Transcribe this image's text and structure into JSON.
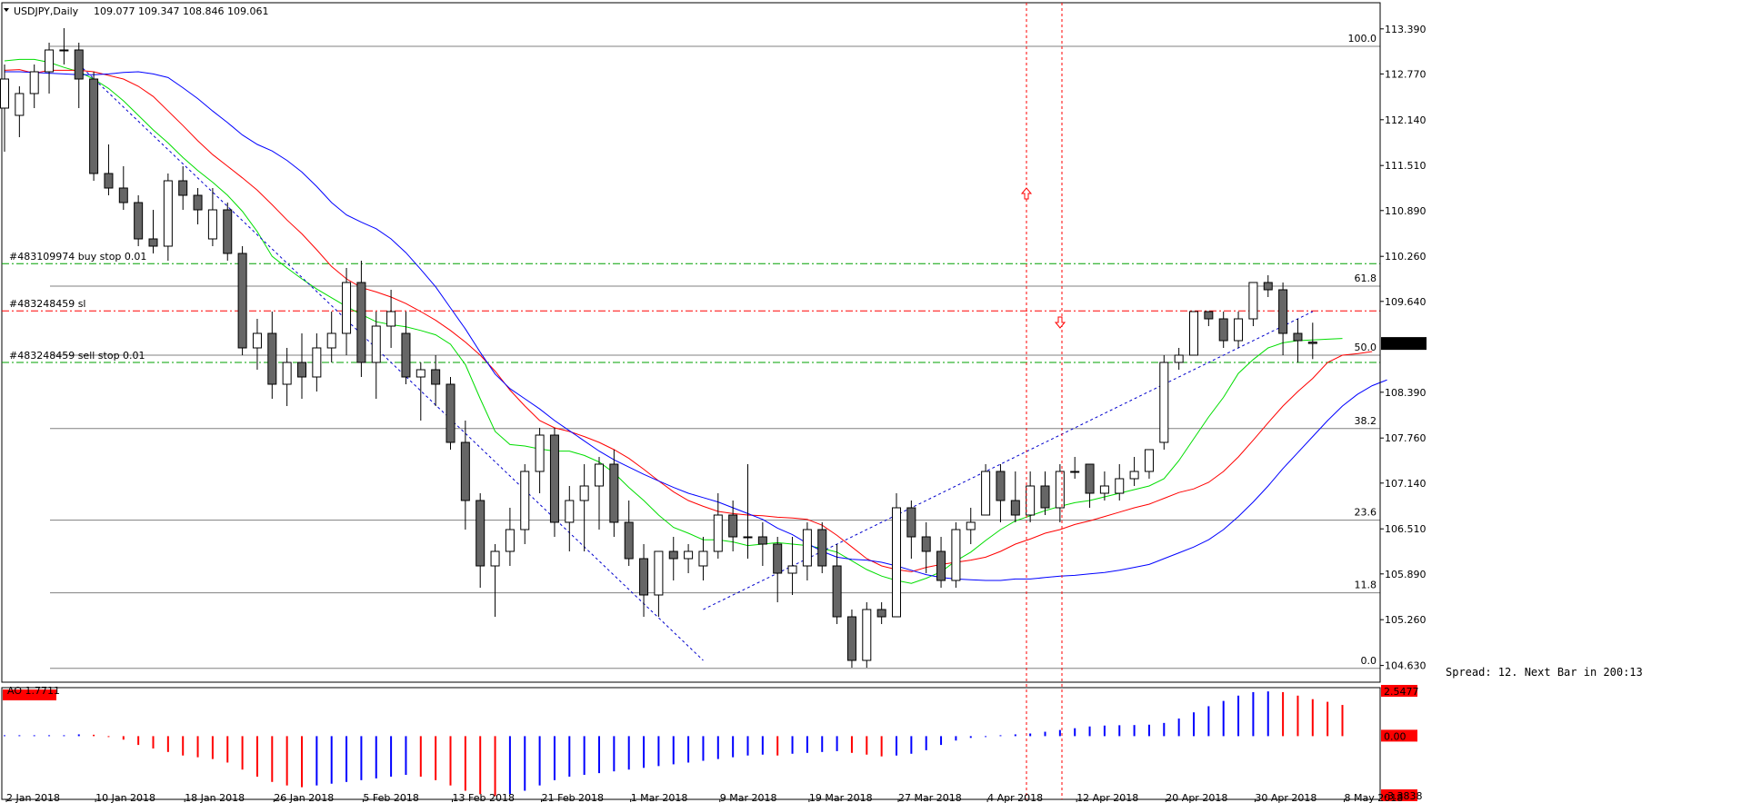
{
  "window": {
    "symbol_timeframe": "USDJPY,Daily",
    "ohlc": "109.077 109.347 108.846 109.061",
    "spread_text": "Spread: 12. Next Bar in 200:13"
  },
  "chart_data": [
    {
      "type": "candlestick",
      "title": "USDJPY,Daily",
      "ylim": [
        104.4,
        113.75
      ],
      "price_ticks": [
        "113.390",
        "112.770",
        "112.140",
        "111.510",
        "110.890",
        "110.260",
        "109.640",
        "109.061",
        "108.390",
        "107.760",
        "107.140",
        "106.510",
        "105.890",
        "105.260",
        "104.630"
      ],
      "current_price": "109.061",
      "date_labels": [
        "2 Jan 2018",
        "10 Jan 2018",
        "18 Jan 2018",
        "26 Jan 2018",
        "5 Feb 2018",
        "13 Feb 2018",
        "21 Feb 2018",
        "1 Mar 2018",
        "9 Mar 2018",
        "19 Mar 2018",
        "27 Mar 2018",
        "4 Apr 2018",
        "12 Apr 2018",
        "20 Apr 2018",
        "30 Apr 2018",
        "8 May 2018"
      ],
      "candles": [
        {
          "o": 112.3,
          "h": 112.9,
          "l": 111.7,
          "c": 112.7
        },
        {
          "o": 112.2,
          "h": 112.6,
          "l": 111.9,
          "c": 112.5
        },
        {
          "o": 112.5,
          "h": 112.9,
          "l": 112.3,
          "c": 112.8
        },
        {
          "o": 112.8,
          "h": 113.2,
          "l": 112.5,
          "c": 113.1
        },
        {
          "o": 113.1,
          "h": 113.4,
          "l": 112.9,
          "c": 113.1
        },
        {
          "o": 113.1,
          "h": 113.2,
          "l": 112.3,
          "c": 112.7
        },
        {
          "o": 112.7,
          "h": 112.8,
          "l": 111.3,
          "c": 111.4
        },
        {
          "o": 111.4,
          "h": 111.8,
          "l": 111.1,
          "c": 111.2
        },
        {
          "o": 111.2,
          "h": 111.5,
          "l": 110.9,
          "c": 111.0
        },
        {
          "o": 111.0,
          "h": 111.1,
          "l": 110.4,
          "c": 110.5
        },
        {
          "o": 110.5,
          "h": 110.9,
          "l": 110.3,
          "c": 110.4
        },
        {
          "o": 110.4,
          "h": 111.4,
          "l": 110.2,
          "c": 111.3
        },
        {
          "o": 111.3,
          "h": 111.5,
          "l": 110.9,
          "c": 111.1
        },
        {
          "o": 111.1,
          "h": 111.2,
          "l": 110.7,
          "c": 110.9
        },
        {
          "o": 110.5,
          "h": 111.2,
          "l": 110.4,
          "c": 110.9
        },
        {
          "o": 110.9,
          "h": 111.0,
          "l": 110.2,
          "c": 110.3
        },
        {
          "o": 110.3,
          "h": 110.4,
          "l": 108.9,
          "c": 109.0
        },
        {
          "o": 109.0,
          "h": 109.4,
          "l": 108.7,
          "c": 109.2
        },
        {
          "o": 109.2,
          "h": 109.5,
          "l": 108.3,
          "c": 108.5
        },
        {
          "o": 108.5,
          "h": 109.0,
          "l": 108.2,
          "c": 108.8
        },
        {
          "o": 108.8,
          "h": 109.2,
          "l": 108.3,
          "c": 108.6
        },
        {
          "o": 108.6,
          "h": 109.2,
          "l": 108.4,
          "c": 109.0
        },
        {
          "o": 109.0,
          "h": 109.5,
          "l": 108.8,
          "c": 109.2
        },
        {
          "o": 109.2,
          "h": 110.1,
          "l": 108.9,
          "c": 109.9
        },
        {
          "o": 109.9,
          "h": 110.2,
          "l": 108.6,
          "c": 108.8
        },
        {
          "o": 108.8,
          "h": 109.5,
          "l": 108.3,
          "c": 109.3
        },
        {
          "o": 109.3,
          "h": 109.8,
          "l": 109.0,
          "c": 109.5
        },
        {
          "o": 109.2,
          "h": 109.5,
          "l": 108.5,
          "c": 108.6
        },
        {
          "o": 108.6,
          "h": 108.8,
          "l": 108.0,
          "c": 108.7
        },
        {
          "o": 108.7,
          "h": 108.9,
          "l": 108.2,
          "c": 108.5
        },
        {
          "o": 108.5,
          "h": 108.6,
          "l": 107.6,
          "c": 107.7
        },
        {
          "o": 107.7,
          "h": 108.0,
          "l": 106.5,
          "c": 106.9
        },
        {
          "o": 106.9,
          "h": 107.0,
          "l": 105.7,
          "c": 106.0
        },
        {
          "o": 106.0,
          "h": 106.3,
          "l": 105.3,
          "c": 106.2
        },
        {
          "o": 106.2,
          "h": 106.8,
          "l": 106.0,
          "c": 106.5
        },
        {
          "o": 106.5,
          "h": 107.4,
          "l": 106.3,
          "c": 107.3
        },
        {
          "o": 107.3,
          "h": 107.9,
          "l": 107.0,
          "c": 107.8
        },
        {
          "o": 107.8,
          "h": 107.9,
          "l": 106.4,
          "c": 106.6
        },
        {
          "o": 106.6,
          "h": 107.1,
          "l": 106.2,
          "c": 106.9
        },
        {
          "o": 106.9,
          "h": 107.4,
          "l": 106.2,
          "c": 107.1
        },
        {
          "o": 107.1,
          "h": 107.5,
          "l": 106.5,
          "c": 107.4
        },
        {
          "o": 107.4,
          "h": 107.6,
          "l": 106.4,
          "c": 106.6
        },
        {
          "o": 106.6,
          "h": 106.9,
          "l": 106.0,
          "c": 106.1
        },
        {
          "o": 106.1,
          "h": 106.3,
          "l": 105.3,
          "c": 105.6
        },
        {
          "o": 105.6,
          "h": 106.2,
          "l": 105.3,
          "c": 106.2
        },
        {
          "o": 106.2,
          "h": 106.4,
          "l": 105.8,
          "c": 106.1
        },
        {
          "o": 106.1,
          "h": 106.3,
          "l": 105.9,
          "c": 106.2
        },
        {
          "o": 106.0,
          "h": 106.4,
          "l": 105.8,
          "c": 106.2
        },
        {
          "o": 106.2,
          "h": 107.0,
          "l": 106.1,
          "c": 106.7
        },
        {
          "o": 106.7,
          "h": 106.9,
          "l": 106.2,
          "c": 106.4
        },
        {
          "o": 106.4,
          "h": 107.4,
          "l": 106.1,
          "c": 106.4
        },
        {
          "o": 106.4,
          "h": 106.6,
          "l": 106.0,
          "c": 106.3
        },
        {
          "o": 106.3,
          "h": 106.4,
          "l": 105.5,
          "c": 105.9
        },
        {
          "o": 105.9,
          "h": 106.4,
          "l": 105.6,
          "c": 106.0
        },
        {
          "o": 106.0,
          "h": 106.6,
          "l": 105.8,
          "c": 106.5
        },
        {
          "o": 106.5,
          "h": 106.6,
          "l": 105.9,
          "c": 106.0
        },
        {
          "o": 106.0,
          "h": 106.3,
          "l": 105.2,
          "c": 105.3
        },
        {
          "o": 105.3,
          "h": 105.4,
          "l": 104.6,
          "c": 104.7
        },
        {
          "o": 104.7,
          "h": 105.5,
          "l": 104.6,
          "c": 105.4
        },
        {
          "o": 105.4,
          "h": 105.5,
          "l": 105.2,
          "c": 105.3
        },
        {
          "o": 105.3,
          "h": 107.0,
          "l": 105.3,
          "c": 106.8
        },
        {
          "o": 106.8,
          "h": 106.9,
          "l": 106.1,
          "c": 106.4
        },
        {
          "o": 106.4,
          "h": 106.6,
          "l": 105.9,
          "c": 106.2
        },
        {
          "o": 106.2,
          "h": 106.4,
          "l": 105.7,
          "c": 105.8
        },
        {
          "o": 105.8,
          "h": 106.6,
          "l": 105.7,
          "c": 106.5
        },
        {
          "o": 106.5,
          "h": 106.8,
          "l": 106.3,
          "c": 106.6
        },
        {
          "o": 106.7,
          "h": 107.4,
          "l": 106.7,
          "c": 107.3
        },
        {
          "o": 107.3,
          "h": 107.4,
          "l": 106.6,
          "c": 106.9
        },
        {
          "o": 106.9,
          "h": 107.3,
          "l": 106.6,
          "c": 106.7
        },
        {
          "o": 106.7,
          "h": 107.3,
          "l": 106.6,
          "c": 107.1
        },
        {
          "o": 107.1,
          "h": 107.3,
          "l": 106.7,
          "c": 106.8
        },
        {
          "o": 106.8,
          "h": 107.4,
          "l": 106.6,
          "c": 107.3
        },
        {
          "o": 107.3,
          "h": 107.5,
          "l": 107.2,
          "c": 107.3
        },
        {
          "o": 107.4,
          "h": 107.4,
          "l": 106.8,
          "c": 107.0
        },
        {
          "o": 107.0,
          "h": 107.3,
          "l": 106.9,
          "c": 107.1
        },
        {
          "o": 107.0,
          "h": 107.4,
          "l": 106.9,
          "c": 107.2
        },
        {
          "o": 107.2,
          "h": 107.5,
          "l": 107.1,
          "c": 107.3
        },
        {
          "o": 107.3,
          "h": 107.6,
          "l": 107.2,
          "c": 107.6
        },
        {
          "o": 107.7,
          "h": 108.9,
          "l": 107.6,
          "c": 108.8
        },
        {
          "o": 108.8,
          "h": 109.0,
          "l": 108.7,
          "c": 108.9
        },
        {
          "o": 108.9,
          "h": 109.5,
          "l": 108.9,
          "c": 109.5
        },
        {
          "o": 109.5,
          "h": 109.5,
          "l": 109.3,
          "c": 109.4
        },
        {
          "o": 109.4,
          "h": 109.5,
          "l": 109.0,
          "c": 109.1
        },
        {
          "o": 109.1,
          "h": 109.5,
          "l": 109.0,
          "c": 109.4
        },
        {
          "o": 109.4,
          "h": 109.9,
          "l": 109.3,
          "c": 109.9
        },
        {
          "o": 109.9,
          "h": 110.0,
          "l": 109.7,
          "c": 109.8
        },
        {
          "o": 109.8,
          "h": 109.9,
          "l": 108.9,
          "c": 109.2
        },
        {
          "o": 109.2,
          "h": 109.4,
          "l": 108.8,
          "c": 109.1
        },
        {
          "o": 109.08,
          "h": 109.347,
          "l": 108.846,
          "c": 109.061
        }
      ],
      "moving_averages": [
        {
          "name": "MA green",
          "color": "#00dd00",
          "values": [
            112.95,
            112.97,
            112.97,
            112.93,
            112.86,
            112.8,
            112.7,
            112.57,
            112.4,
            112.2,
            112,
            111.82,
            111.62,
            111.44,
            111.28,
            111.1,
            110.88,
            110.6,
            110.26,
            110.1,
            109.95,
            109.81,
            109.69,
            109.57,
            109.46,
            109.36,
            109.32,
            109.29,
            109.24,
            109.18,
            109.05,
            108.77,
            108.3,
            107.85,
            107.67,
            107.65,
            107.61,
            107.58,
            107.58,
            107.52,
            107.43,
            107.28,
            107.08,
            106.9,
            106.7,
            106.53,
            106.45,
            106.36,
            106.36,
            106.33,
            106.28,
            106.3,
            106.32,
            106.3,
            106.28,
            106.24,
            106.19,
            106.07,
            105.95,
            105.86,
            105.8,
            105.76,
            105.83,
            105.92,
            106.07,
            106.19,
            106.35,
            106.5,
            106.62,
            106.69,
            106.76,
            106.82,
            106.87,
            106.9,
            106.95,
            107.0,
            107.05,
            107.1,
            107.2,
            107.45,
            107.75,
            108.05,
            108.32,
            108.65,
            108.84,
            109.0,
            109.07,
            109.1,
            109.11,
            109.12,
            109.13
          ]
        },
        {
          "name": "MA red",
          "color": "#ff0000",
          "values": [
            112.82,
            112.83,
            112.78,
            112.82,
            112.82,
            112.82,
            112.8,
            112.75,
            112.7,
            112.6,
            112.46,
            112.26,
            112.06,
            111.85,
            111.66,
            111.5,
            111.34,
            111.17,
            110.97,
            110.76,
            110.57,
            110.35,
            110.12,
            109.95,
            109.83,
            109.77,
            109.7,
            109.61,
            109.5,
            109.38,
            109.24,
            109.08,
            108.9,
            108.68,
            108.42,
            108.2,
            108.0,
            107.9,
            107.85,
            107.78,
            107.7,
            107.6,
            107.48,
            107.33,
            107.17,
            107.02,
            106.9,
            106.82,
            106.75,
            106.72,
            106.7,
            106.69,
            106.67,
            106.66,
            106.64,
            106.56,
            106.42,
            106.26,
            106.1,
            106.0,
            105.95,
            105.92,
            105.98,
            106.02,
            106.05,
            106.08,
            106.12,
            106.2,
            106.3,
            106.37,
            106.45,
            106.5,
            106.57,
            106.62,
            106.68,
            106.74,
            106.8,
            106.85,
            106.93,
            107.01,
            107.06,
            107.15,
            107.3,
            107.5,
            107.73,
            107.97,
            108.2,
            108.4,
            108.58,
            108.8,
            108.9,
            108.92,
            108.95
          ]
        },
        {
          "name": "MA blue",
          "color": "#0000ff",
          "values": [
            112.8,
            112.8,
            112.79,
            112.78,
            112.77,
            112.76,
            112.76,
            112.77,
            112.79,
            112.8,
            112.77,
            112.72,
            112.58,
            112.43,
            112.26,
            112.1,
            111.93,
            111.8,
            111.71,
            111.58,
            111.42,
            111.22,
            111.0,
            110.83,
            110.73,
            110.64,
            110.5,
            110.31,
            110.08,
            109.84,
            109.55,
            109.26,
            108.94,
            108.64,
            108.44,
            108.3,
            108.16,
            108.0,
            107.86,
            107.72,
            107.58,
            107.46,
            107.36,
            107.26,
            107.17,
            107.08,
            107.0,
            106.94,
            106.88,
            106.8,
            106.72,
            106.64,
            106.52,
            106.43,
            106.31,
            106.2,
            106.12,
            106.09,
            106.08,
            106.05,
            106.0,
            105.94,
            105.88,
            105.84,
            105.82,
            105.81,
            105.8,
            105.8,
            105.82,
            105.82,
            105.84,
            105.86,
            105.87,
            105.89,
            105.91,
            105.94,
            105.98,
            106.02,
            106.1,
            106.18,
            106.26,
            106.36,
            106.5,
            106.68,
            106.88,
            107.1,
            107.34,
            107.56,
            107.78,
            108.0,
            108.2,
            108.36,
            108.48,
            108.56
          ]
        }
      ],
      "fibonacci_levels": [
        {
          "label": "100.0",
          "price": 113.15
        },
        {
          "label": "61.8",
          "price": 109.85
        },
        {
          "label": "50.0",
          "price": 108.9
        },
        {
          "label": "38.2",
          "price": 107.89
        },
        {
          "label": "23.6",
          "price": 106.63
        },
        {
          "label": "11.8",
          "price": 105.63
        },
        {
          "label": "0.0",
          "price": 104.59
        }
      ],
      "order_lines": [
        {
          "label": "#483109974 buy stop 0.01",
          "price": 110.16,
          "color": "#00a000"
        },
        {
          "label": "#483248459 sl",
          "price": 109.51,
          "color": "#ff0000"
        },
        {
          "label": "#483248459 sell stop 0.01",
          "price": 108.8,
          "color": "#00a000"
        }
      ]
    },
    {
      "type": "bar",
      "title": "AO 1.7711",
      "ylim": [
        -3.3838,
        2.5477
      ],
      "axis_labels": [
        "2.5477",
        "0.00",
        "-3.3838"
      ],
      "values": [
        0.05,
        0.05,
        0.05,
        0.05,
        0.05,
        0.1,
        0.08,
        0,
        -0.2,
        -0.5,
        -0.7,
        -0.9,
        -1.1,
        -1.2,
        -1.3,
        -1.5,
        -1.9,
        -2.3,
        -2.6,
        -2.8,
        -2.9,
        -2.8,
        -2.7,
        -2.6,
        -2.5,
        -2.4,
        -2.3,
        -2.2,
        -2.3,
        -2.5,
        -2.8,
        -3.1,
        -3.3,
        -3.4,
        -3.3,
        -3.1,
        -2.8,
        -2.5,
        -2.3,
        -2.2,
        -2.1,
        -2.0,
        -1.9,
        -1.8,
        -1.7,
        -1.6,
        -1.5,
        -1.4,
        -1.3,
        -1.2,
        -1.1,
        -1.05,
        -1.1,
        -1.0,
        -0.95,
        -0.9,
        -0.85,
        -0.95,
        -1.05,
        -1.15,
        -1.1,
        -1.0,
        -0.8,
        -0.5,
        -0.25,
        -0.1,
        -0.05,
        0.05,
        0.1,
        0.15,
        0.25,
        0.35,
        0.45,
        0.55,
        0.6,
        0.62,
        0.63,
        0.65,
        0.75,
        1.0,
        1.35,
        1.7,
        2.0,
        2.3,
        2.5,
        2.54,
        2.5,
        2.3,
        2.1,
        1.95,
        1.7711
      ]
    }
  ]
}
